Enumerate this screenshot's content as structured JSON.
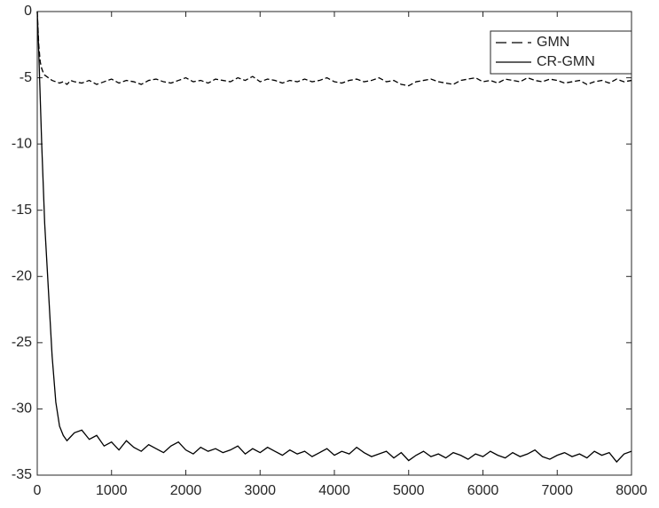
{
  "chart_data": {
    "type": "line",
    "x": [
      0,
      20,
      40,
      60,
      80,
      100,
      150,
      200,
      250,
      300,
      350,
      400,
      450,
      500,
      600,
      700,
      800,
      900,
      1000,
      1100,
      1200,
      1300,
      1400,
      1500,
      1600,
      1700,
      1800,
      1900,
      2000,
      2100,
      2200,
      2300,
      2400,
      2500,
      2600,
      2700,
      2800,
      2900,
      3000,
      3100,
      3200,
      3300,
      3400,
      3500,
      3600,
      3700,
      3800,
      3900,
      4000,
      4100,
      4200,
      4300,
      4400,
      4500,
      4600,
      4700,
      4800,
      4900,
      5000,
      5100,
      5200,
      5300,
      5400,
      5500,
      5600,
      5700,
      5800,
      5900,
      6000,
      6100,
      6200,
      6300,
      6400,
      6500,
      6600,
      6700,
      6800,
      6900,
      7000,
      7100,
      7200,
      7300,
      7400,
      7500,
      7600,
      7700,
      7800,
      7900,
      8000
    ],
    "series": [
      {
        "name": "GMN",
        "color": "#000000",
        "line_style": "dashed",
        "values": [
          0,
          -2.5,
          -3.8,
          -4.3,
          -4.6,
          -4.8,
          -5.0,
          -5.2,
          -5.3,
          -5.4,
          -5.3,
          -5.5,
          -5.2,
          -5.3,
          -5.4,
          -5.2,
          -5.5,
          -5.3,
          -5.1,
          -5.4,
          -5.2,
          -5.3,
          -5.5,
          -5.2,
          -5.1,
          -5.3,
          -5.4,
          -5.2,
          -5.0,
          -5.3,
          -5.2,
          -5.4,
          -5.1,
          -5.2,
          -5.3,
          -5.0,
          -5.2,
          -4.9,
          -5.3,
          -5.1,
          -5.2,
          -5.4,
          -5.2,
          -5.3,
          -5.1,
          -5.3,
          -5.2,
          -5.0,
          -5.3,
          -5.4,
          -5.2,
          -5.1,
          -5.3,
          -5.2,
          -5.0,
          -5.3,
          -5.2,
          -5.5,
          -5.6,
          -5.3,
          -5.2,
          -5.1,
          -5.3,
          -5.4,
          -5.5,
          -5.2,
          -5.1,
          -5.0,
          -5.3,
          -5.2,
          -5.4,
          -5.1,
          -5.2,
          -5.3,
          -5.0,
          -5.2,
          -5.3,
          -5.1,
          -5.2,
          -5.4,
          -5.3,
          -5.2,
          -5.5,
          -5.3,
          -5.2,
          -5.4,
          -5.1,
          -5.3,
          -5.2
        ]
      },
      {
        "name": "CR-GMN",
        "color": "#000000",
        "line_style": "solid",
        "values": [
          0,
          -3,
          -6.5,
          -10,
          -13,
          -16,
          -21,
          -26,
          -29.5,
          -31.3,
          -32,
          -32.4,
          -32.1,
          -31.8,
          -31.6,
          -32.3,
          -32.0,
          -32.8,
          -32.5,
          -33.1,
          -32.4,
          -32.9,
          -33.2,
          -32.7,
          -33.0,
          -33.3,
          -32.8,
          -32.5,
          -33.1,
          -33.4,
          -32.9,
          -33.2,
          -33.0,
          -33.3,
          -33.1,
          -32.8,
          -33.4,
          -33.0,
          -33.3,
          -32.9,
          -33.2,
          -33.5,
          -33.1,
          -33.4,
          -33.2,
          -33.6,
          -33.3,
          -33.0,
          -33.5,
          -33.2,
          -33.4,
          -32.9,
          -33.3,
          -33.6,
          -33.4,
          -33.2,
          -33.7,
          -33.3,
          -33.9,
          -33.5,
          -33.2,
          -33.6,
          -33.4,
          -33.7,
          -33.3,
          -33.5,
          -33.8,
          -33.4,
          -33.6,
          -33.2,
          -33.5,
          -33.7,
          -33.3,
          -33.6,
          -33.4,
          -33.1,
          -33.6,
          -33.8,
          -33.5,
          -33.3,
          -33.6,
          -33.4,
          -33.7,
          -33.2,
          -33.5,
          -33.3,
          -34.0,
          -33.4,
          -33.2
        ]
      }
    ],
    "xlim": [
      0,
      8000
    ],
    "xticks": [
      0,
      1000,
      2000,
      3000,
      4000,
      5000,
      6000,
      7000,
      8000
    ],
    "ylim": [
      -35,
      0
    ],
    "yticks": [
      0,
      -5,
      -10,
      -15,
      -20,
      -25,
      -30,
      -35
    ],
    "legend": "top-right"
  }
}
